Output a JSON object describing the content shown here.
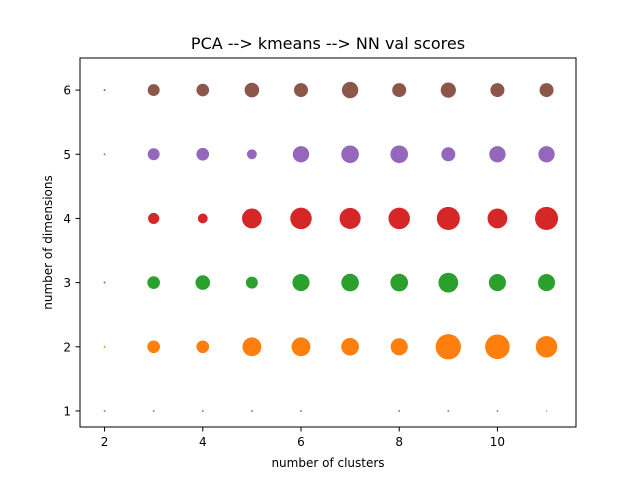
{
  "chart_data": {
    "type": "scatter",
    "title": "PCA --> kmeans --> NN val scores",
    "xlabel": "number of clusters",
    "ylabel": "number of dimensions",
    "xlim": [
      1.5,
      11.6
    ],
    "ylim": [
      0.75,
      6.5
    ],
    "x_ticks": [
      2,
      4,
      6,
      8,
      10
    ],
    "y_ticks": [
      1,
      2,
      3,
      4,
      5,
      6
    ],
    "grid": false,
    "legend": "none",
    "x": [
      2,
      3,
      4,
      5,
      6,
      7,
      8,
      9,
      10,
      11
    ],
    "series": [
      {
        "dimensions": 1,
        "color": "#7f7f7f",
        "marker_area": [
          2,
          2,
          2,
          2,
          2,
          0,
          2,
          2,
          2,
          1
        ]
      },
      {
        "dimensions": 2,
        "color": "#ff7f0e",
        "marker_area": [
          2,
          90,
          90,
          200,
          200,
          175,
          165,
          360,
          340,
          260
        ]
      },
      {
        "dimensions": 3,
        "color": "#2ca02c",
        "marker_area": [
          2,
          90,
          120,
          80,
          165,
          175,
          175,
          220,
          165,
          165
        ]
      },
      {
        "dimensions": 4,
        "color": "#d62728",
        "marker_area": [
          0,
          70,
          55,
          220,
          260,
          250,
          260,
          300,
          220,
          300
        ]
      },
      {
        "dimensions": 5,
        "color": "#9467bd",
        "marker_area": [
          2,
          80,
          90,
          55,
          150,
          175,
          175,
          110,
          150,
          150
        ]
      },
      {
        "dimensions": 6,
        "color": "#8c564b",
        "marker_area": [
          2,
          80,
          90,
          120,
          110,
          150,
          110,
          130,
          110,
          110
        ]
      }
    ]
  }
}
